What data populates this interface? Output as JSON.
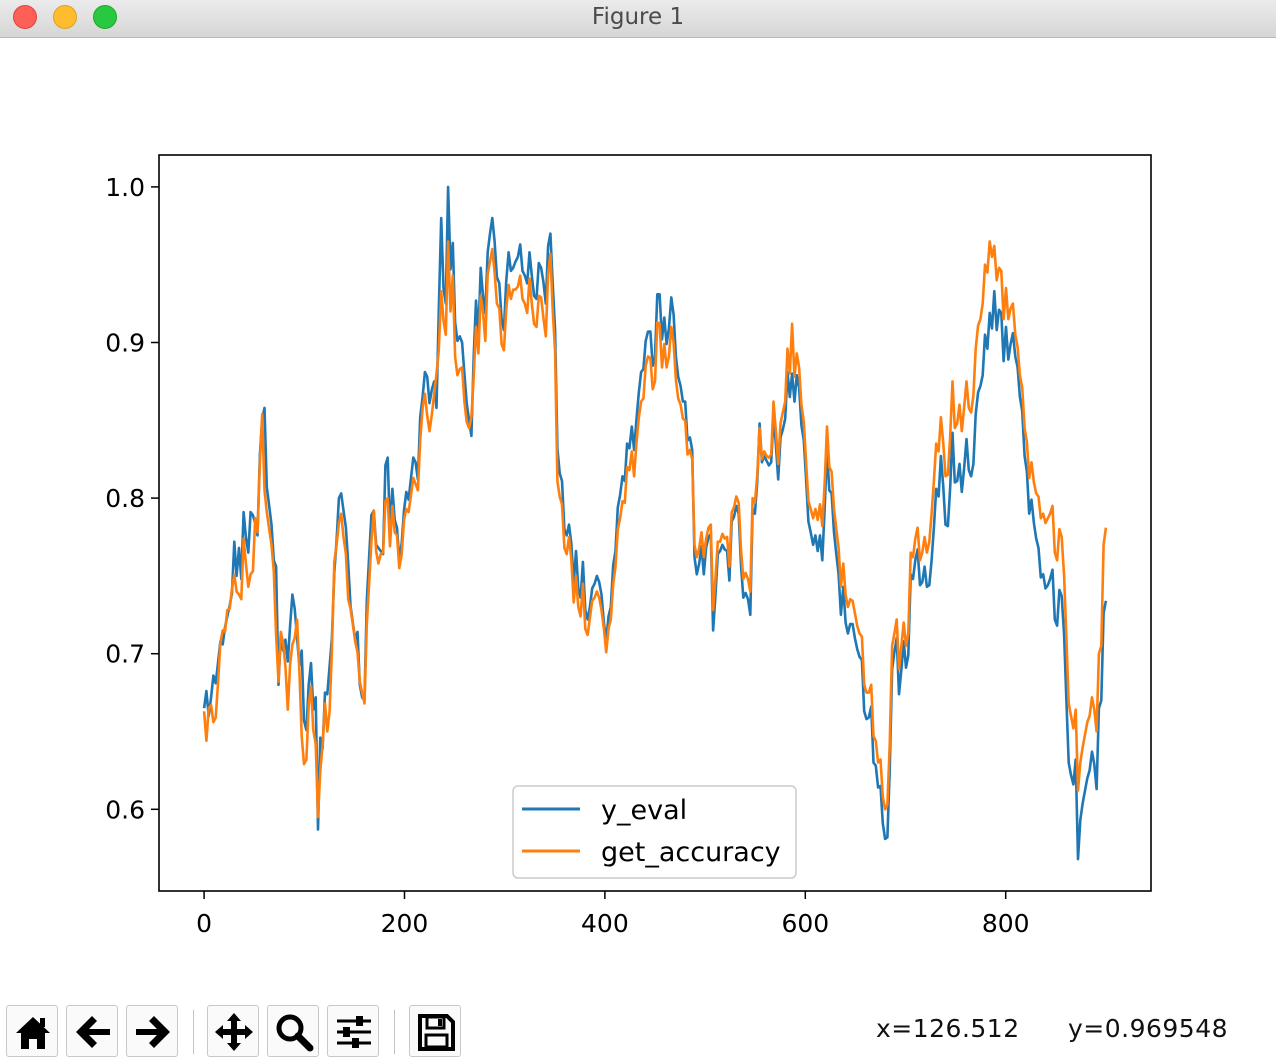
{
  "window": {
    "title": "Figure 1",
    "controls": [
      "close",
      "minimize",
      "zoom"
    ]
  },
  "toolbar": {
    "buttons": [
      {
        "name": "home",
        "icon": "home-icon"
      },
      {
        "name": "back",
        "icon": "arrow-left-icon"
      },
      {
        "name": "forward",
        "icon": "arrow-right-icon"
      },
      {
        "name": "pan",
        "icon": "move-icon"
      },
      {
        "name": "zoom",
        "icon": "magnifier-icon"
      },
      {
        "name": "subplots",
        "icon": "sliders-icon"
      },
      {
        "name": "save",
        "icon": "floppy-disk-icon"
      }
    ],
    "x_readout": "x=126.512",
    "y_readout": "y=0.969548"
  },
  "chart_data": {
    "type": "line",
    "title": "",
    "xlabel": "",
    "ylabel": "",
    "xlim": [
      -45,
      945
    ],
    "ylim": [
      0.5475,
      1.0205
    ],
    "xticks": [
      0,
      200,
      400,
      600,
      800
    ],
    "xtick_labels": [
      "0",
      "200",
      "400",
      "600",
      "800"
    ],
    "yticks": [
      0.6,
      0.7,
      0.8,
      0.9,
      1.0
    ],
    "ytick_labels": [
      "0.6",
      "0.7",
      "0.8",
      "0.9",
      "1.0"
    ],
    "grid": false,
    "legend": "lower-center",
    "x_start": 0,
    "x_end": 900,
    "x_step": 2,
    "series": [
      {
        "name": "y_eval",
        "color": "#1f77b4",
        "values": [
          0.665,
          0.676,
          0.66,
          0.672,
          0.686,
          0.681,
          0.694,
          0.708,
          0.706,
          0.717,
          0.724,
          0.731,
          0.739,
          0.772,
          0.75,
          0.768,
          0.748,
          0.791,
          0.775,
          0.765,
          0.791,
          0.789,
          0.784,
          0.776,
          0.828,
          0.851,
          0.858,
          0.807,
          0.795,
          0.783,
          0.76,
          0.756,
          0.68,
          0.712,
          0.702,
          0.709,
          0.695,
          0.718,
          0.738,
          0.729,
          0.71,
          0.692,
          0.702,
          0.657,
          0.651,
          0.68,
          0.694,
          0.664,
          0.672,
          0.587,
          0.646,
          0.639,
          0.675,
          0.674,
          0.692,
          0.71,
          0.752,
          0.773,
          0.8,
          0.803,
          0.792,
          0.781,
          0.758,
          0.731,
          0.72,
          0.709,
          0.714,
          0.68,
          0.672,
          0.67,
          0.734,
          0.762,
          0.789,
          0.792,
          0.77,
          0.768,
          0.766,
          0.764,
          0.821,
          0.826,
          0.779,
          0.806,
          0.786,
          0.781,
          0.76,
          0.771,
          0.792,
          0.804,
          0.799,
          0.813,
          0.826,
          0.823,
          0.812,
          0.852,
          0.865,
          0.881,
          0.878,
          0.861,
          0.87,
          0.875,
          0.858,
          0.921,
          0.98,
          0.935,
          0.925,
          1.0,
          0.947,
          0.964,
          0.913,
          0.901,
          0.904,
          0.9,
          0.88,
          0.861,
          0.85,
          0.84,
          0.891,
          0.927,
          0.905,
          0.948,
          0.93,
          0.919,
          0.958,
          0.97,
          0.98,
          0.965,
          0.942,
          0.938,
          0.915,
          0.908,
          0.939,
          0.958,
          0.946,
          0.948,
          0.952,
          0.955,
          0.963,
          0.946,
          0.943,
          0.938,
          0.958,
          0.943,
          0.93,
          0.928,
          0.951,
          0.948,
          0.939,
          0.925,
          0.962,
          0.97,
          0.938,
          0.908,
          0.832,
          0.816,
          0.811,
          0.78,
          0.776,
          0.783,
          0.771,
          0.745,
          0.766,
          0.742,
          0.736,
          0.759,
          0.728,
          0.722,
          0.73,
          0.742,
          0.745,
          0.75,
          0.746,
          0.738,
          0.72,
          0.708,
          0.724,
          0.73,
          0.757,
          0.766,
          0.794,
          0.802,
          0.814,
          0.811,
          0.835,
          0.832,
          0.846,
          0.831,
          0.85,
          0.867,
          0.881,
          0.883,
          0.901,
          0.907,
          0.907,
          0.885,
          0.891,
          0.931,
          0.931,
          0.902,
          0.916,
          0.899,
          0.909,
          0.929,
          0.918,
          0.891,
          0.878,
          0.872,
          0.862,
          0.862,
          0.837,
          0.839,
          0.831,
          0.762,
          0.751,
          0.758,
          0.769,
          0.751,
          0.768,
          0.775,
          0.777,
          0.715,
          0.737,
          0.764,
          0.766,
          0.77,
          0.767,
          0.766,
          0.747,
          0.785,
          0.788,
          0.795,
          0.79,
          0.757,
          0.736,
          0.739,
          0.735,
          0.725,
          0.793,
          0.79,
          0.811,
          0.848,
          0.823,
          0.827,
          0.824,
          0.821,
          0.823,
          0.853,
          0.834,
          0.812,
          0.839,
          0.844,
          0.851,
          0.881,
          0.865,
          0.88,
          0.862,
          0.879,
          0.871,
          0.847,
          0.837,
          0.812,
          0.785,
          0.778,
          0.77,
          0.776,
          0.766,
          0.776,
          0.76,
          0.794,
          0.831,
          0.805,
          0.803,
          0.778,
          0.764,
          0.751,
          0.725,
          0.743,
          0.72,
          0.713,
          0.719,
          0.719,
          0.71,
          0.703,
          0.698,
          0.696,
          0.663,
          0.658,
          0.659,
          0.666,
          0.63,
          0.628,
          0.614,
          0.615,
          0.591,
          0.581,
          0.582,
          0.627,
          0.69,
          0.701,
          0.71,
          0.674,
          0.69,
          0.708,
          0.691,
          0.699,
          0.751,
          0.748,
          0.76,
          0.767,
          0.744,
          0.746,
          0.756,
          0.743,
          0.744,
          0.76,
          0.781,
          0.806,
          0.801,
          0.827,
          0.808,
          0.783,
          0.782,
          0.807,
          0.842,
          0.81,
          0.811,
          0.822,
          0.804,
          0.819,
          0.838,
          0.818,
          0.814,
          0.822,
          0.854,
          0.868,
          0.872,
          0.879,
          0.905,
          0.896,
          0.919,
          0.909,
          0.933,
          0.908,
          0.921,
          0.919,
          0.888,
          0.91,
          0.889,
          0.899,
          0.906,
          0.891,
          0.884,
          0.865,
          0.856,
          0.827,
          0.817,
          0.79,
          0.799,
          0.784,
          0.774,
          0.768,
          0.749,
          0.751,
          0.742,
          0.744,
          0.748,
          0.754,
          0.722,
          0.718,
          0.741,
          0.737,
          0.712,
          0.67,
          0.63,
          0.622,
          0.616,
          0.632,
          0.568,
          0.593,
          0.604,
          0.612,
          0.62,
          0.625,
          0.637,
          0.629,
          0.613,
          0.665,
          0.67,
          0.726,
          0.734
        ]
      },
      {
        "name": "get_accuracy",
        "color": "#ff7f0e",
        "values": [
          0.663,
          0.644,
          0.665,
          0.667,
          0.656,
          0.659,
          0.681,
          0.707,
          0.715,
          0.714,
          0.728,
          0.729,
          0.742,
          0.751,
          0.74,
          0.738,
          0.735,
          0.774,
          0.758,
          0.743,
          0.751,
          0.753,
          0.787,
          0.778,
          0.823,
          0.854,
          0.805,
          0.791,
          0.78,
          0.77,
          0.753,
          0.712,
          0.682,
          0.714,
          0.707,
          0.692,
          0.664,
          0.693,
          0.706,
          0.71,
          0.722,
          0.689,
          0.647,
          0.629,
          0.632,
          0.667,
          0.679,
          0.651,
          0.642,
          0.595,
          0.625,
          0.641,
          0.668,
          0.65,
          0.663,
          0.702,
          0.759,
          0.77,
          0.784,
          0.79,
          0.775,
          0.764,
          0.735,
          0.729,
          0.719,
          0.708,
          0.701,
          0.682,
          0.675,
          0.668,
          0.719,
          0.745,
          0.772,
          0.792,
          0.766,
          0.758,
          0.764,
          0.765,
          0.798,
          0.8,
          0.769,
          0.795,
          0.778,
          0.776,
          0.755,
          0.764,
          0.786,
          0.793,
          0.791,
          0.802,
          0.813,
          0.809,
          0.805,
          0.837,
          0.858,
          0.867,
          0.853,
          0.843,
          0.854,
          0.867,
          0.88,
          0.895,
          0.933,
          0.914,
          0.905,
          0.965,
          0.92,
          0.943,
          0.891,
          0.879,
          0.883,
          0.884,
          0.862,
          0.849,
          0.845,
          0.852,
          0.878,
          0.91,
          0.893,
          0.93,
          0.92,
          0.901,
          0.944,
          0.952,
          0.96,
          0.945,
          0.925,
          0.922,
          0.899,
          0.895,
          0.921,
          0.937,
          0.928,
          0.934,
          0.934,
          0.936,
          0.943,
          0.928,
          0.925,
          0.919,
          0.941,
          0.925,
          0.912,
          0.91,
          0.93,
          0.929,
          0.916,
          0.904,
          0.944,
          0.957,
          0.921,
          0.894,
          0.811,
          0.801,
          0.796,
          0.768,
          0.764,
          0.775,
          0.761,
          0.733,
          0.75,
          0.73,
          0.724,
          0.745,
          0.716,
          0.712,
          0.723,
          0.734,
          0.736,
          0.74,
          0.736,
          0.728,
          0.716,
          0.701,
          0.716,
          0.722,
          0.745,
          0.756,
          0.78,
          0.787,
          0.798,
          0.797,
          0.82,
          0.818,
          0.83,
          0.814,
          0.835,
          0.851,
          0.862,
          0.864,
          0.885,
          0.891,
          0.89,
          0.87,
          0.875,
          0.913,
          0.912,
          0.884,
          0.899,
          0.884,
          0.891,
          0.91,
          0.9,
          0.876,
          0.864,
          0.86,
          0.851,
          0.85,
          0.828,
          0.831,
          0.825,
          0.77,
          0.762,
          0.768,
          0.778,
          0.762,
          0.774,
          0.781,
          0.783,
          0.728,
          0.748,
          0.772,
          0.772,
          0.777,
          0.774,
          0.775,
          0.756,
          0.791,
          0.794,
          0.801,
          0.797,
          0.767,
          0.748,
          0.752,
          0.748,
          0.74,
          0.8,
          0.797,
          0.815,
          0.845,
          0.825,
          0.83,
          0.827,
          0.826,
          0.828,
          0.862,
          0.843,
          0.822,
          0.848,
          0.855,
          0.862,
          0.896,
          0.88,
          0.912,
          0.878,
          0.893,
          0.884,
          0.86,
          0.849,
          0.823,
          0.798,
          0.793,
          0.787,
          0.793,
          0.786,
          0.796,
          0.782,
          0.81,
          0.846,
          0.82,
          0.817,
          0.793,
          0.78,
          0.768,
          0.743,
          0.758,
          0.738,
          0.73,
          0.735,
          0.734,
          0.726,
          0.718,
          0.713,
          0.711,
          0.68,
          0.675,
          0.675,
          0.68,
          0.647,
          0.644,
          0.63,
          0.632,
          0.608,
          0.6,
          0.603,
          0.643,
          0.705,
          0.713,
          0.722,
          0.69,
          0.705,
          0.72,
          0.705,
          0.713,
          0.765,
          0.762,
          0.774,
          0.781,
          0.76,
          0.765,
          0.775,
          0.765,
          0.772,
          0.79,
          0.811,
          0.835,
          0.83,
          0.852,
          0.836,
          0.814,
          0.815,
          0.84,
          0.875,
          0.845,
          0.848,
          0.86,
          0.843,
          0.858,
          0.875,
          0.858,
          0.855,
          0.866,
          0.896,
          0.911,
          0.915,
          0.925,
          0.95,
          0.945,
          0.965,
          0.955,
          0.962,
          0.94,
          0.948,
          0.946,
          0.915,
          0.935,
          0.915,
          0.922,
          0.925,
          0.905,
          0.897,
          0.879,
          0.871,
          0.845,
          0.836,
          0.813,
          0.823,
          0.81,
          0.803,
          0.801,
          0.787,
          0.79,
          0.784,
          0.787,
          0.79,
          0.795,
          0.765,
          0.76,
          0.78,
          0.775,
          0.75,
          0.71,
          0.668,
          0.66,
          0.652,
          0.664,
          0.612,
          0.63,
          0.64,
          0.648,
          0.656,
          0.66,
          0.672,
          0.664,
          0.65,
          0.7,
          0.705,
          0.77,
          0.781
        ]
      }
    ]
  }
}
